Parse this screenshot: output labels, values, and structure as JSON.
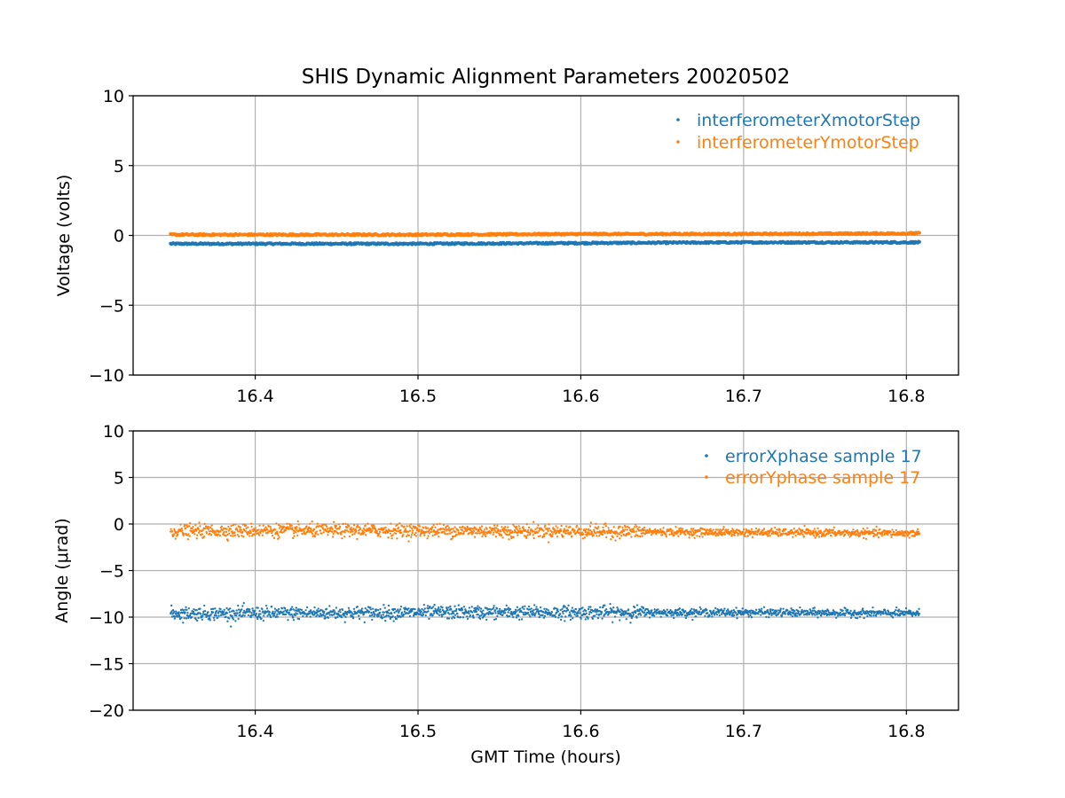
{
  "chart_data": [
    {
      "type": "scatter",
      "title": "SHIS Dynamic Alignment Parameters 20020502",
      "xlabel": "",
      "ylabel": "Voltage (volts)",
      "xlim": [
        16.325,
        16.832
      ],
      "ylim": [
        -10,
        10
      ],
      "xticks": [
        16.4,
        16.5,
        16.6,
        16.7,
        16.8
      ],
      "xtick_labels": [
        "16.4",
        "16.5",
        "16.6",
        "16.7",
        "16.8"
      ],
      "yticks": [
        -10,
        -5,
        0,
        5,
        10
      ],
      "ytick_labels": [
        "−10",
        "−5",
        "0",
        "5",
        "10"
      ],
      "grid": true,
      "legend_position": "top-right",
      "series": [
        {
          "name": "interferometerXmotorStep",
          "color": "#1f77b4",
          "x_range": [
            16.348,
            16.808
          ],
          "x": [
            16.348,
            16.4,
            16.5,
            16.6,
            16.7,
            16.808
          ],
          "y": [
            -0.6,
            -0.6,
            -0.6,
            -0.55,
            -0.5,
            -0.5
          ]
        },
        {
          "name": "interferometerYmotorStep",
          "color": "#ff7f0e",
          "x_range": [
            16.348,
            16.808
          ],
          "x": [
            16.348,
            16.4,
            16.5,
            16.6,
            16.7,
            16.808
          ],
          "y": [
            0.05,
            0.05,
            0.05,
            0.1,
            0.1,
            0.15
          ]
        }
      ]
    },
    {
      "type": "scatter",
      "title": "",
      "xlabel": "GMT Time (hours)",
      "ylabel": "Angle (μrad)",
      "xlim": [
        16.325,
        16.832
      ],
      "ylim": [
        -20,
        10
      ],
      "xticks": [
        16.4,
        16.5,
        16.6,
        16.7,
        16.8
      ],
      "xtick_labels": [
        "16.4",
        "16.5",
        "16.6",
        "16.7",
        "16.8"
      ],
      "yticks": [
        -20,
        -15,
        -10,
        -5,
        0,
        5,
        10
      ],
      "ytick_labels": [
        "−20",
        "−15",
        "−10",
        "−5",
        "0",
        "5",
        "10"
      ],
      "grid": true,
      "legend_position": "top-right",
      "series": [
        {
          "name": "errorXphase sample 17",
          "color": "#1f77b4",
          "x_range": [
            16.348,
            16.808
          ],
          "x": [
            16.348,
            16.4,
            16.5,
            16.6,
            16.7,
            16.808
          ],
          "y": [
            -9.6,
            -9.6,
            -9.5,
            -9.5,
            -9.5,
            -9.6
          ],
          "spread": 0.35
        },
        {
          "name": "errorYphase sample 17",
          "color": "#ff7f0e",
          "x_range": [
            16.348,
            16.808
          ],
          "x": [
            16.348,
            16.4,
            16.5,
            16.6,
            16.7,
            16.808
          ],
          "y": [
            -0.8,
            -0.7,
            -0.7,
            -0.8,
            -0.9,
            -1.0
          ],
          "spread": 0.35
        }
      ]
    }
  ]
}
